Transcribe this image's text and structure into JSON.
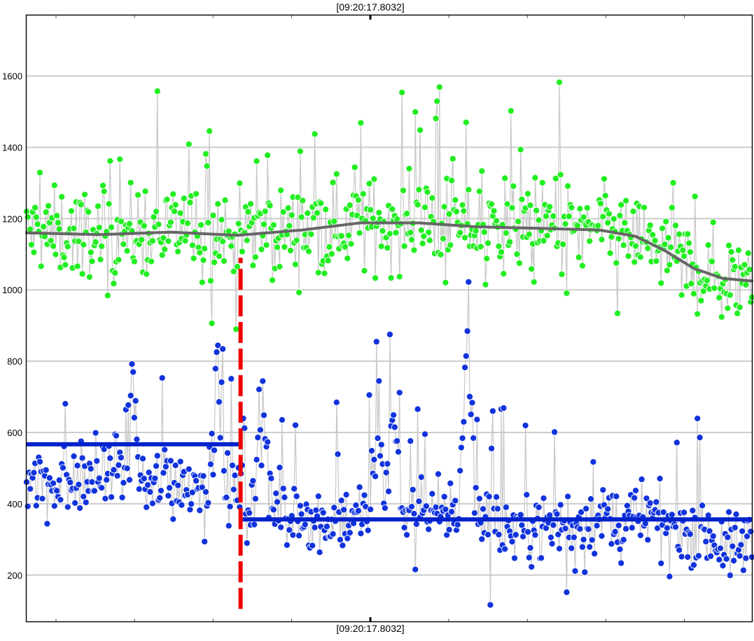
{
  "chart_data": {
    "type": "scatter",
    "title": "",
    "top_time_label": "[09:20:17.8032]",
    "bottom_time_label": "[09:20:17.8032]",
    "xlabel": "",
    "ylabel": "",
    "ylim": [
      70,
      1770
    ],
    "y_ticks": [
      200,
      400,
      600,
      800,
      1000,
      1200,
      1400,
      1600
    ],
    "y_tick_labels": [
      "200",
      "400",
      "600",
      "800",
      "1000",
      "1200",
      "1400",
      "1600"
    ],
    "grid": true,
    "legend": "none",
    "point_count": 600,
    "series": [
      {
        "key": "green",
        "color": "#22ee22",
        "trend_color": "#666666",
        "trend": [
          [
            0,
            1160
          ],
          [
            0.1,
            1155
          ],
          [
            0.2,
            1162
          ],
          [
            0.29,
            1153
          ],
          [
            0.38,
            1168
          ],
          [
            0.46,
            1188
          ],
          [
            0.54,
            1188
          ],
          [
            0.62,
            1177
          ],
          [
            0.72,
            1172
          ],
          [
            0.79,
            1168
          ],
          [
            0.84,
            1150
          ],
          [
            0.88,
            1110
          ],
          [
            0.92,
            1060
          ],
          [
            0.96,
            1032
          ],
          [
            1.0,
            1025
          ]
        ],
        "noise": 85,
        "spikes_up": 200,
        "spikes_down": 120
      },
      {
        "key": "blue",
        "color": "#1133dd",
        "trend_color": "#0022cc",
        "segments": [
          {
            "x": [
              0,
              0.293
            ],
            "level": 567
          },
          {
            "x": [
              0.298,
              1.0
            ],
            "level": 356
          }
        ],
        "centers": [
          [
            0,
            470
          ],
          [
            0.08,
            470
          ],
          [
            0.15,
            470
          ],
          [
            0.29,
            450
          ],
          [
            0.3,
            400
          ],
          [
            0.43,
            355
          ],
          [
            0.48,
            380
          ],
          [
            0.55,
            360
          ],
          [
            0.62,
            390
          ],
          [
            0.65,
            330
          ],
          [
            0.75,
            345
          ],
          [
            0.85,
            360
          ],
          [
            0.93,
            330
          ],
          [
            0.97,
            270
          ],
          [
            1.0,
            300
          ]
        ],
        "noise": 65,
        "spikes_up": 220,
        "spikes_down": 80,
        "bursts": [
          {
            "x": 0.145,
            "amp": 400
          },
          {
            "x": 0.262,
            "amp": 430
          },
          {
            "x": 0.326,
            "amp": 500
          },
          {
            "x": 0.485,
            "amp": 380
          },
          {
            "x": 0.505,
            "amp": 450
          },
          {
            "x": 0.607,
            "amp": 420
          },
          {
            "x": 0.609,
            "amp": 350
          }
        ]
      }
    ],
    "change_point": {
      "x": 0.295,
      "y_range": [
        105,
        1090
      ],
      "color": "#ee0000"
    }
  }
}
